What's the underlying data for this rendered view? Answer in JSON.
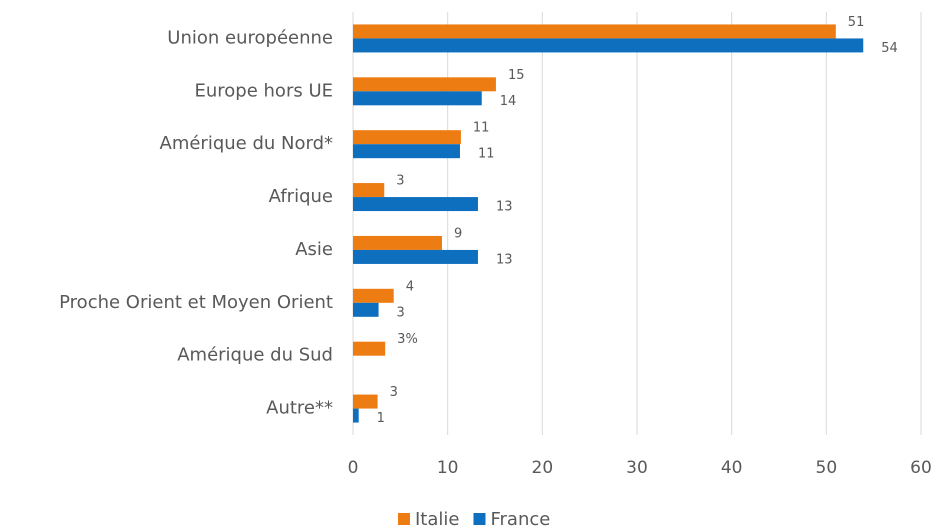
{
  "chart_data": {
    "type": "bar",
    "orientation": "horizontal",
    "categories": [
      "Union européenne",
      "Europe hors UE",
      "Amérique du Nord*",
      "Afrique",
      "Asie",
      "Proche Orient et Moyen Orient",
      "Amérique du Sud",
      "Autre**"
    ],
    "series": [
      {
        "name": "Italie",
        "color": "#ed7d12",
        "values": [
          51,
          15.1,
          11.4,
          3.3,
          9.4,
          4.3,
          3.4,
          2.6
        ],
        "value_labels": [
          "51",
          "15",
          "11",
          "3",
          "9",
          "4",
          "3%",
          "3"
        ]
      },
      {
        "name": "France",
        "color": "#0f6fbf",
        "values": [
          53.9,
          13.6,
          11.3,
          13.2,
          13.2,
          2.7,
          null,
          0.6
        ],
        "value_labels": [
          "54",
          "14",
          "11",
          "13",
          "13",
          "3",
          null,
          "1"
        ]
      }
    ],
    "xlim": [
      0,
      60
    ],
    "xticks": [
      0,
      10,
      20,
      30,
      40,
      50,
      60
    ],
    "grid": true,
    "legend": "bottom"
  }
}
